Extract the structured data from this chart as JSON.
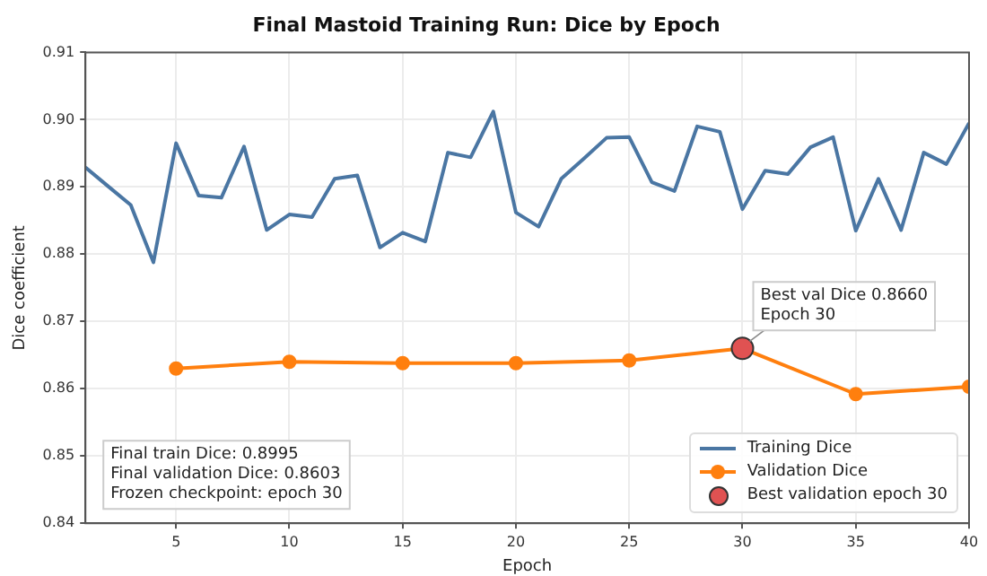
{
  "chart_data": {
    "type": "line",
    "title": "Final Mastoid Training Run: Dice by Epoch",
    "xlabel": "Epoch",
    "ylabel": "Dice coefficient",
    "x": [
      1,
      2,
      3,
      4,
      5,
      6,
      7,
      8,
      9,
      10,
      11,
      12,
      13,
      14,
      15,
      16,
      17,
      18,
      19,
      20,
      21,
      22,
      23,
      24,
      25,
      26,
      27,
      28,
      29,
      30,
      31,
      32,
      33,
      34,
      35,
      36,
      37,
      38,
      39,
      40
    ],
    "series": [
      {
        "name": "Training Dice",
        "color": "#4a76a3",
        "marker": "none",
        "values": [
          0.8929,
          0.8901,
          0.8873,
          0.8788,
          0.8965,
          0.8887,
          0.8884,
          0.896,
          0.8836,
          0.8859,
          0.8855,
          0.8912,
          0.8917,
          0.881,
          0.8832,
          0.8819,
          0.8951,
          0.8944,
          0.9012,
          0.8862,
          0.8841,
          0.8912,
          0.8942,
          0.8973,
          0.8974,
          0.8907,
          0.8894,
          0.899,
          0.8982,
          0.8867,
          0.8924,
          0.8919,
          0.8959,
          0.8974,
          0.8835,
          0.8912,
          0.8836,
          0.8951,
          0.8934,
          0.8995
        ]
      },
      {
        "name": "Validation Dice",
        "color": "#ff7f0e",
        "marker": "circle",
        "x": [
          5,
          10,
          15,
          20,
          25,
          30,
          35,
          40
        ],
        "values": [
          0.863,
          0.864,
          0.8638,
          0.8638,
          0.8642,
          0.866,
          0.8592,
          0.8603
        ]
      },
      {
        "name": "Best validation epoch 30",
        "type": "scatter",
        "color": "#e05252",
        "marker": "circle",
        "x": [
          30
        ],
        "values": [
          0.866
        ]
      }
    ],
    "xlim": [
      1,
      40
    ],
    "xticks": [
      5,
      10,
      15,
      20,
      25,
      30,
      35,
      40
    ],
    "ylim": [
      0.84,
      0.91
    ],
    "yticks": [
      0.84,
      0.85,
      0.86,
      0.87,
      0.88,
      0.89,
      {
        "value": 0.9,
        "label": "0.90"
      },
      0.91
    ],
    "grid": true,
    "legend": "bottom right",
    "annotations": [
      {
        "text": "Best val Dice 0.8660\nEpoch 30",
        "x": 30,
        "y": 0.866
      },
      "Final train Dice: 0.8995\nFinal validation Dice: 0.8603\nFrozen checkpoint: epoch 30"
    ]
  }
}
